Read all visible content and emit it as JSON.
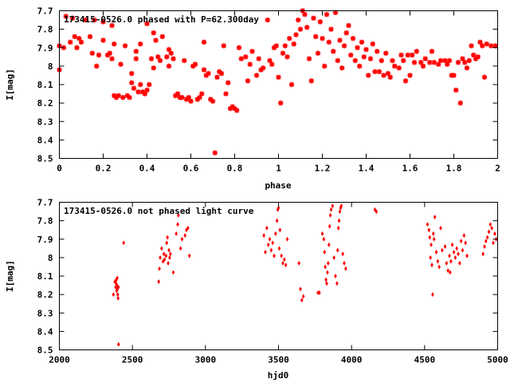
{
  "chart_data": [
    {
      "type": "scatter",
      "title": "173415-0526.0 phased with P=62.300day",
      "xlabel": "phase",
      "ylabel": "I[mag]",
      "xlim": [
        0,
        2
      ],
      "ylim": [
        7.7,
        8.5
      ],
      "y_inverted": true,
      "x_ticks": [
        0,
        0.2,
        0.4,
        0.6,
        0.8,
        1,
        1.2,
        1.4,
        1.6,
        1.8,
        2
      ],
      "y_ticks": [
        7.7,
        7.8,
        7.9,
        8,
        8.1,
        8.2,
        8.3,
        8.4,
        8.5
      ],
      "marker": "star",
      "color": "#ff0000",
      "points": [
        [
          0.0,
          8.02
        ],
        [
          0.0,
          7.89
        ],
        [
          0.02,
          7.9
        ],
        [
          0.03,
          7.73
        ],
        [
          0.05,
          7.87
        ],
        [
          0.06,
          7.74
        ],
        [
          0.07,
          7.84
        ],
        [
          0.08,
          7.9
        ],
        [
          0.09,
          7.85
        ],
        [
          0.1,
          7.87
        ],
        [
          0.12,
          7.75
        ],
        [
          0.14,
          7.84
        ],
        [
          0.15,
          7.93
        ],
        [
          0.16,
          7.75
        ],
        [
          0.17,
          8.0
        ],
        [
          0.18,
          7.94
        ],
        [
          0.2,
          7.76
        ],
        [
          0.2,
          7.86
        ],
        [
          0.22,
          7.94
        ],
        [
          0.23,
          7.93
        ],
        [
          0.24,
          7.78
        ],
        [
          0.24,
          7.96
        ],
        [
          0.25,
          7.88
        ],
        [
          0.25,
          8.16
        ],
        [
          0.26,
          8.17
        ],
        [
          0.27,
          8.16
        ],
        [
          0.28,
          7.99
        ],
        [
          0.29,
          8.17
        ],
        [
          0.3,
          7.89
        ],
        [
          0.31,
          8.16
        ],
        [
          0.32,
          8.17
        ],
        [
          0.33,
          8.09
        ],
        [
          0.33,
          8.04
        ],
        [
          0.34,
          8.12
        ],
        [
          0.35,
          7.96
        ],
        [
          0.35,
          7.92
        ],
        [
          0.36,
          8.14
        ],
        [
          0.37,
          7.88
        ],
        [
          0.37,
          8.1
        ],
        [
          0.38,
          8.14
        ],
        [
          0.39,
          8.15
        ],
        [
          0.4,
          8.13
        ],
        [
          0.4,
          7.77
        ],
        [
          0.41,
          8.1
        ],
        [
          0.42,
          7.96
        ],
        [
          0.43,
          8.01
        ],
        [
          0.43,
          7.82
        ],
        [
          0.44,
          7.86
        ],
        [
          0.45,
          7.95
        ],
        [
          0.46,
          7.97
        ],
        [
          0.47,
          7.84
        ],
        [
          0.49,
          7.95
        ],
        [
          0.5,
          7.91
        ],
        [
          0.5,
          8.0
        ],
        [
          0.51,
          7.93
        ],
        [
          0.52,
          7.96
        ],
        [
          0.53,
          8.16
        ],
        [
          0.54,
          8.15
        ],
        [
          0.55,
          8.17
        ],
        [
          0.56,
          8.17
        ],
        [
          0.57,
          7.97
        ],
        [
          0.58,
          8.18
        ],
        [
          0.59,
          8.17
        ],
        [
          0.6,
          8.19
        ],
        [
          0.61,
          8.0
        ],
        [
          0.62,
          7.99
        ],
        [
          0.63,
          8.18
        ],
        [
          0.64,
          8.17
        ],
        [
          0.65,
          8.15
        ],
        [
          0.66,
          8.02
        ],
        [
          0.66,
          7.87
        ],
        [
          0.67,
          8.05
        ],
        [
          0.68,
          8.04
        ],
        [
          0.69,
          8.18
        ],
        [
          0.7,
          8.19
        ],
        [
          0.71,
          8.47
        ],
        [
          0.72,
          8.06
        ],
        [
          0.73,
          8.03
        ],
        [
          0.74,
          8.04
        ],
        [
          0.75,
          7.89
        ],
        [
          0.76,
          8.15
        ],
        [
          0.77,
          8.09
        ],
        [
          0.78,
          8.23
        ],
        [
          0.79,
          8.22
        ],
        [
          0.8,
          8.23
        ],
        [
          0.81,
          8.24
        ],
        [
          0.82,
          7.9
        ],
        [
          0.83,
          7.96
        ],
        [
          0.85,
          7.95
        ],
        [
          0.86,
          8.08
        ],
        [
          0.87,
          7.99
        ],
        [
          0.88,
          7.92
        ],
        [
          0.9,
          8.05
        ],
        [
          0.91,
          7.96
        ],
        [
          0.92,
          8.02
        ],
        [
          0.93,
          8.01
        ],
        [
          0.95,
          7.75
        ],
        [
          0.96,
          7.97
        ],
        [
          0.97,
          7.99
        ],
        [
          0.98,
          7.9
        ],
        [
          0.99,
          7.89
        ],
        [
          1.0,
          8.06
        ],
        [
          1.01,
          8.2
        ],
        [
          1.02,
          7.93
        ],
        [
          1.03,
          7.89
        ],
        [
          1.04,
          7.95
        ],
        [
          1.05,
          7.85
        ],
        [
          1.06,
          8.1
        ],
        [
          1.07,
          7.88
        ],
        [
          1.08,
          7.83
        ],
        [
          1.09,
          7.75
        ],
        [
          1.1,
          7.8
        ],
        [
          1.11,
          7.7
        ],
        [
          1.12,
          7.72
        ],
        [
          1.13,
          7.79
        ],
        [
          1.14,
          7.96
        ],
        [
          1.15,
          8.08
        ],
        [
          1.16,
          7.74
        ],
        [
          1.17,
          7.84
        ],
        [
          1.18,
          7.93
        ],
        [
          1.19,
          7.76
        ],
        [
          1.2,
          7.85
        ],
        [
          1.21,
          8.0
        ],
        [
          1.22,
          7.72
        ],
        [
          1.23,
          7.87
        ],
        [
          1.24,
          7.8
        ],
        [
          1.25,
          7.92
        ],
        [
          1.26,
          7.71
        ],
        [
          1.27,
          7.97
        ],
        [
          1.28,
          7.86
        ],
        [
          1.29,
          8.01
        ],
        [
          1.3,
          7.89
        ],
        [
          1.31,
          7.82
        ],
        [
          1.32,
          7.78
        ],
        [
          1.33,
          7.94
        ],
        [
          1.34,
          7.85
        ],
        [
          1.35,
          7.97
        ],
        [
          1.36,
          7.9
        ],
        [
          1.37,
          8.0
        ],
        [
          1.38,
          7.87
        ],
        [
          1.39,
          7.95
        ],
        [
          1.4,
          7.91
        ],
        [
          1.41,
          8.05
        ],
        [
          1.42,
          7.96
        ],
        [
          1.43,
          7.88
        ],
        [
          1.44,
          8.03
        ],
        [
          1.45,
          7.92
        ],
        [
          1.46,
          8.03
        ],
        [
          1.47,
          7.97
        ],
        [
          1.48,
          8.05
        ],
        [
          1.49,
          7.93
        ],
        [
          1.5,
          8.04
        ],
        [
          1.51,
          8.06
        ],
        [
          1.52,
          7.97
        ],
        [
          1.53,
          8.0
        ],
        [
          1.55,
          8.01
        ],
        [
          1.56,
          7.94
        ],
        [
          1.57,
          7.97
        ],
        [
          1.58,
          8.08
        ],
        [
          1.59,
          7.94
        ],
        [
          1.6,
          8.05
        ],
        [
          1.61,
          7.94
        ],
        [
          1.62,
          7.98
        ],
        [
          1.63,
          7.92
        ],
        [
          1.65,
          7.98
        ],
        [
          1.66,
          8.0
        ],
        [
          1.67,
          7.96
        ],
        [
          1.69,
          7.98
        ],
        [
          1.7,
          7.92
        ],
        [
          1.71,
          7.98
        ],
        [
          1.73,
          7.99
        ],
        [
          1.74,
          7.97
        ],
        [
          1.76,
          7.97
        ],
        [
          1.77,
          7.99
        ],
        [
          1.78,
          7.97
        ],
        [
          1.79,
          8.05
        ],
        [
          1.8,
          8.05
        ],
        [
          1.81,
          8.13
        ],
        [
          1.82,
          7.98
        ],
        [
          1.83,
          8.2
        ],
        [
          1.84,
          7.96
        ],
        [
          1.85,
          7.98
        ],
        [
          1.86,
          8.01
        ],
        [
          1.87,
          7.97
        ],
        [
          1.88,
          7.89
        ],
        [
          1.89,
          7.94
        ],
        [
          1.9,
          7.96
        ],
        [
          1.91,
          7.95
        ],
        [
          1.92,
          7.87
        ],
        [
          1.93,
          7.89
        ],
        [
          1.94,
          8.06
        ],
        [
          1.95,
          7.88
        ],
        [
          1.97,
          7.89
        ],
        [
          1.99,
          7.89
        ]
      ]
    },
    {
      "type": "scatter",
      "title": "173415-0526.0 not phased light curve",
      "xlabel": "hjd0",
      "ylabel": "I[mag]",
      "xlim": [
        2000,
        5000
      ],
      "ylim": [
        7.7,
        8.5
      ],
      "y_inverted": true,
      "x_ticks": [
        2000,
        2500,
        3000,
        3500,
        4000,
        4500,
        5000
      ],
      "y_ticks": [
        7.7,
        7.8,
        7.9,
        8,
        8.1,
        8.2,
        8.3,
        8.4,
        8.5
      ],
      "marker": "diamond",
      "color": "#ff0000",
      "points": [
        [
          2370,
          8.2
        ],
        [
          2380,
          8.13
        ],
        [
          2385,
          8.16
        ],
        [
          2388,
          8.14
        ],
        [
          2390,
          8.12
        ],
        [
          2392,
          8.18
        ],
        [
          2394,
          8.15
        ],
        [
          2396,
          8.11
        ],
        [
          2398,
          8.17
        ],
        [
          2400,
          8.2
        ],
        [
          2402,
          8.22
        ],
        [
          2404,
          8.16
        ],
        [
          2405,
          8.47
        ],
        [
          2440,
          7.92
        ],
        [
          2680,
          8.13
        ],
        [
          2685,
          8.06
        ],
        [
          2690,
          8.0
        ],
        [
          2700,
          7.95
        ],
        [
          2710,
          8.02
        ],
        [
          2715,
          7.98
        ],
        [
          2720,
          8.01
        ],
        [
          2730,
          7.99
        ],
        [
          2735,
          7.92
        ],
        [
          2740,
          7.89
        ],
        [
          2745,
          8.03
        ],
        [
          2750,
          7.96
        ],
        [
          2755,
          8.0
        ],
        [
          2760,
          7.98
        ],
        [
          2780,
          8.08
        ],
        [
          2800,
          7.87
        ],
        [
          2810,
          7.82
        ],
        [
          2815,
          7.77
        ],
        [
          2830,
          7.95
        ],
        [
          2840,
          7.9
        ],
        [
          2860,
          7.88
        ],
        [
          2870,
          7.85
        ],
        [
          2880,
          7.84
        ],
        [
          2890,
          7.99
        ],
        [
          3400,
          7.88
        ],
        [
          3410,
          7.97
        ],
        [
          3420,
          7.84
        ],
        [
          3430,
          7.93
        ],
        [
          3440,
          7.9
        ],
        [
          3450,
          7.96
        ],
        [
          3460,
          7.92
        ],
        [
          3470,
          7.99
        ],
        [
          3480,
          7.87
        ],
        [
          3490,
          7.8
        ],
        [
          3495,
          7.74
        ],
        [
          3500,
          7.73
        ],
        [
          3505,
          7.95
        ],
        [
          3510,
          7.85
        ],
        [
          3520,
          7.99
        ],
        [
          3530,
          8.03
        ],
        [
          3540,
          8.01
        ],
        [
          3550,
          8.04
        ],
        [
          3560,
          7.9
        ],
        [
          3640,
          8.03
        ],
        [
          3650,
          8.17
        ],
        [
          3660,
          8.23
        ],
        [
          3670,
          8.21
        ],
        [
          3770,
          8.19
        ],
        [
          3780,
          8.19
        ],
        [
          3800,
          7.87
        ],
        [
          3810,
          7.9
        ],
        [
          3815,
          7.97
        ],
        [
          3820,
          8.05
        ],
        [
          3825,
          8.12
        ],
        [
          3830,
          8.14
        ],
        [
          3835,
          8.08
        ],
        [
          3840,
          8.03
        ],
        [
          3845,
          7.93
        ],
        [
          3850,
          7.83
        ],
        [
          3855,
          7.77
        ],
        [
          3860,
          7.74
        ],
        [
          3870,
          7.72
        ],
        [
          3880,
          8.0
        ],
        [
          3890,
          8.1
        ],
        [
          3900,
          8.14
        ],
        [
          3905,
          7.96
        ],
        [
          3910,
          7.84
        ],
        [
          3915,
          7.8
        ],
        [
          3920,
          7.75
        ],
        [
          3925,
          7.73
        ],
        [
          3930,
          7.72
        ],
        [
          3940,
          7.98
        ],
        [
          3950,
          8.03
        ],
        [
          3960,
          8.06
        ],
        [
          4160,
          7.74
        ],
        [
          4170,
          7.75
        ],
        [
          4520,
          7.82
        ],
        [
          4530,
          7.85
        ],
        [
          4535,
          7.89
        ],
        [
          4540,
          8.0
        ],
        [
          4545,
          7.93
        ],
        [
          4550,
          8.04
        ],
        [
          4555,
          8.2
        ],
        [
          4560,
          7.87
        ],
        [
          4565,
          7.9
        ],
        [
          4570,
          7.78
        ],
        [
          4580,
          7.97
        ],
        [
          4590,
          8.02
        ],
        [
          4600,
          8.05
        ],
        [
          4610,
          7.84
        ],
        [
          4620,
          7.96
        ],
        [
          4640,
          7.94
        ],
        [
          4650,
          8.03
        ],
        [
          4660,
          8.07
        ],
        [
          4670,
          7.99
        ],
        [
          4675,
          8.08
        ],
        [
          4680,
          8.02
        ],
        [
          4690,
          7.93
        ],
        [
          4700,
          7.97
        ],
        [
          4710,
          8.0
        ],
        [
          4720,
          7.95
        ],
        [
          4730,
          7.98
        ],
        [
          4740,
          8.03
        ],
        [
          4750,
          7.91
        ],
        [
          4760,
          7.96
        ],
        [
          4770,
          7.88
        ],
        [
          4780,
          7.92
        ],
        [
          4790,
          7.99
        ],
        [
          4900,
          7.98
        ],
        [
          4910,
          7.94
        ],
        [
          4920,
          7.91
        ],
        [
          4930,
          7.89
        ],
        [
          4940,
          7.86
        ],
        [
          4950,
          7.82
        ],
        [
          4960,
          7.84
        ],
        [
          4970,
          7.92
        ],
        [
          4980,
          7.87
        ],
        [
          4990,
          7.9
        ]
      ]
    }
  ]
}
